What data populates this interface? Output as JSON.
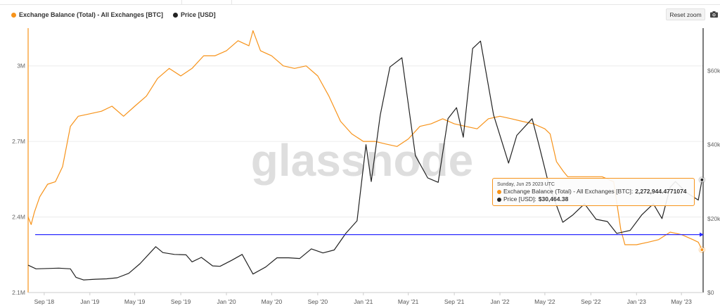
{
  "header": {
    "reset_zoom_label": "Reset zoom",
    "camera_icon": "camera-icon"
  },
  "legend": [
    {
      "label": "Exchange Balance (Total) - All Exchanges [BTC]",
      "color": "#f7931a"
    },
    {
      "label": "Price [USD]",
      "color": "#222222"
    }
  ],
  "watermark": "glassnode",
  "tooltip": {
    "date": "Sunday, Jun 25 2023 UTC",
    "series1_label": "Exchange Balance (Total) - All Exchanges [BTC]:",
    "series1_value": "2,272,944.4771074",
    "series2_label": "Price [USD]:",
    "series2_value": "$30,464.38"
  },
  "chart_data": {
    "type": "line",
    "x_ticks": [
      "Sep '18",
      "Jan '19",
      "May '19",
      "Sep '19",
      "Jan '20",
      "May '20",
      "Sep '20",
      "Jan '21",
      "May '21",
      "Sep '21",
      "Jan '22",
      "May '22",
      "Sep '22",
      "Jan '23",
      "May '23"
    ],
    "x_range": [
      "2018-07-20",
      "2023-06-28"
    ],
    "left_axis": {
      "ticks": [
        "2.1M",
        "2.4M",
        "2.7M",
        "3M"
      ],
      "values": [
        2100000,
        2400000,
        2700000,
        3000000
      ],
      "range": [
        2100000,
        3150000
      ]
    },
    "right_axis": {
      "ticks": [
        "$0",
        "$20k",
        "$40k",
        "$60k"
      ],
      "values": [
        0,
        20000,
        40000,
        60000
      ],
      "range": [
        0,
        71500
      ]
    },
    "reference_line": {
      "value": 2330000,
      "axis": "left",
      "color": "#2b2bff"
    },
    "grid": "horizontal",
    "series": [
      {
        "name": "Exchange Balance (Total) - All Exchanges [BTC]",
        "axis": "left",
        "color": "#f7931a",
        "points": [
          [
            "2018-07-20",
            2400000
          ],
          [
            "2018-07-28",
            2370000
          ],
          [
            "2018-08-06",
            2420000
          ],
          [
            "2018-08-20",
            2480000
          ],
          [
            "2018-09-10",
            2530000
          ],
          [
            "2018-10-01",
            2540000
          ],
          [
            "2018-10-20",
            2600000
          ],
          [
            "2018-11-10",
            2760000
          ],
          [
            "2018-12-01",
            2800000
          ],
          [
            "2019-01-01",
            2810000
          ],
          [
            "2019-02-01",
            2820000
          ],
          [
            "2019-03-01",
            2840000
          ],
          [
            "2019-04-01",
            2800000
          ],
          [
            "2019-05-01",
            2840000
          ],
          [
            "2019-06-01",
            2880000
          ],
          [
            "2019-07-01",
            2950000
          ],
          [
            "2019-08-01",
            2990000
          ],
          [
            "2019-09-01",
            2960000
          ],
          [
            "2019-10-01",
            2990000
          ],
          [
            "2019-11-01",
            3040000
          ],
          [
            "2019-12-01",
            3040000
          ],
          [
            "2020-01-01",
            3060000
          ],
          [
            "2020-02-01",
            3100000
          ],
          [
            "2020-03-01",
            3080000
          ],
          [
            "2020-03-12",
            3140000
          ],
          [
            "2020-04-01",
            3060000
          ],
          [
            "2020-05-01",
            3040000
          ],
          [
            "2020-06-01",
            3000000
          ],
          [
            "2020-07-01",
            2990000
          ],
          [
            "2020-08-01",
            3000000
          ],
          [
            "2020-09-01",
            2960000
          ],
          [
            "2020-10-01",
            2880000
          ],
          [
            "2020-11-01",
            2780000
          ],
          [
            "2020-12-01",
            2730000
          ],
          [
            "2021-01-01",
            2700000
          ],
          [
            "2021-02-01",
            2700000
          ],
          [
            "2021-03-01",
            2690000
          ],
          [
            "2021-04-01",
            2680000
          ],
          [
            "2021-05-01",
            2710000
          ],
          [
            "2021-06-01",
            2760000
          ],
          [
            "2021-07-01",
            2770000
          ],
          [
            "2021-08-01",
            2790000
          ],
          [
            "2021-09-01",
            2770000
          ],
          [
            "2021-10-01",
            2760000
          ],
          [
            "2021-11-01",
            2750000
          ],
          [
            "2021-12-01",
            2790000
          ],
          [
            "2022-01-01",
            2800000
          ],
          [
            "2022-02-01",
            2790000
          ],
          [
            "2022-03-01",
            2780000
          ],
          [
            "2022-04-01",
            2770000
          ],
          [
            "2022-05-01",
            2750000
          ],
          [
            "2022-05-15",
            2730000
          ],
          [
            "2022-06-01",
            2620000
          ],
          [
            "2022-06-20",
            2580000
          ],
          [
            "2022-07-01",
            2560000
          ],
          [
            "2022-08-01",
            2560000
          ],
          [
            "2022-09-01",
            2560000
          ],
          [
            "2022-10-01",
            2560000
          ],
          [
            "2022-11-01",
            2540000
          ],
          [
            "2022-11-20",
            2350000
          ],
          [
            "2022-12-01",
            2290000
          ],
          [
            "2023-01-01",
            2290000
          ],
          [
            "2023-02-01",
            2300000
          ],
          [
            "2023-03-01",
            2310000
          ],
          [
            "2023-04-01",
            2340000
          ],
          [
            "2023-05-01",
            2330000
          ],
          [
            "2023-06-01",
            2310000
          ],
          [
            "2023-06-15",
            2300000
          ],
          [
            "2023-06-25",
            2270000
          ]
        ]
      },
      {
        "name": "Price [USD]",
        "axis": "right",
        "color": "#222222",
        "points": [
          [
            "2018-07-20",
            7400
          ],
          [
            "2018-08-10",
            6400
          ],
          [
            "2018-09-10",
            6500
          ],
          [
            "2018-10-10",
            6600
          ],
          [
            "2018-11-10",
            6400
          ],
          [
            "2018-11-25",
            4100
          ],
          [
            "2018-12-15",
            3400
          ],
          [
            "2019-01-15",
            3600
          ],
          [
            "2019-02-15",
            3700
          ],
          [
            "2019-03-15",
            4000
          ],
          [
            "2019-04-15",
            5200
          ],
          [
            "2019-05-15",
            7800
          ],
          [
            "2019-06-26",
            12400
          ],
          [
            "2019-07-15",
            10800
          ],
          [
            "2019-08-15",
            10300
          ],
          [
            "2019-09-15",
            10200
          ],
          [
            "2019-10-01",
            8300
          ],
          [
            "2019-10-26",
            9500
          ],
          [
            "2019-11-25",
            7200
          ],
          [
            "2019-12-15",
            7100
          ],
          [
            "2020-01-15",
            8700
          ],
          [
            "2020-02-12",
            10300
          ],
          [
            "2020-03-12",
            5000
          ],
          [
            "2020-04-15",
            6900
          ],
          [
            "2020-05-15",
            9400
          ],
          [
            "2020-06-15",
            9400
          ],
          [
            "2020-07-15",
            9200
          ],
          [
            "2020-08-15",
            11800
          ],
          [
            "2020-09-15",
            10700
          ],
          [
            "2020-10-15",
            11500
          ],
          [
            "2020-11-15",
            16000
          ],
          [
            "2020-12-15",
            19400
          ],
          [
            "2021-01-08",
            40000
          ],
          [
            "2021-01-22",
            30000
          ],
          [
            "2021-02-15",
            48000
          ],
          [
            "2021-03-13",
            61000
          ],
          [
            "2021-04-14",
            63500
          ],
          [
            "2021-05-20",
            37000
          ],
          [
            "2021-06-22",
            31000
          ],
          [
            "2021-07-20",
            29800
          ],
          [
            "2021-08-15",
            47000
          ],
          [
            "2021-09-07",
            50000
          ],
          [
            "2021-09-25",
            42000
          ],
          [
            "2021-10-20",
            66000
          ],
          [
            "2021-11-10",
            68000
          ],
          [
            "2021-12-15",
            48000
          ],
          [
            "2022-01-24",
            35000
          ],
          [
            "2022-02-15",
            42500
          ],
          [
            "2022-03-28",
            47000
          ],
          [
            "2022-04-15",
            40000
          ],
          [
            "2022-05-12",
            29000
          ],
          [
            "2022-06-18",
            19000
          ],
          [
            "2022-07-15",
            21000
          ],
          [
            "2022-08-15",
            24000
          ],
          [
            "2022-09-15",
            19800
          ],
          [
            "2022-10-15",
            19200
          ],
          [
            "2022-11-09",
            16000
          ],
          [
            "2022-12-15",
            16800
          ],
          [
            "2023-01-15",
            21000
          ],
          [
            "2023-02-15",
            24000
          ],
          [
            "2023-03-10",
            20000
          ],
          [
            "2023-04-01",
            28500
          ],
          [
            "2023-04-15",
            30000
          ],
          [
            "2023-05-15",
            27000
          ],
          [
            "2023-06-15",
            25000
          ],
          [
            "2023-06-25",
            30464
          ]
        ]
      }
    ]
  }
}
